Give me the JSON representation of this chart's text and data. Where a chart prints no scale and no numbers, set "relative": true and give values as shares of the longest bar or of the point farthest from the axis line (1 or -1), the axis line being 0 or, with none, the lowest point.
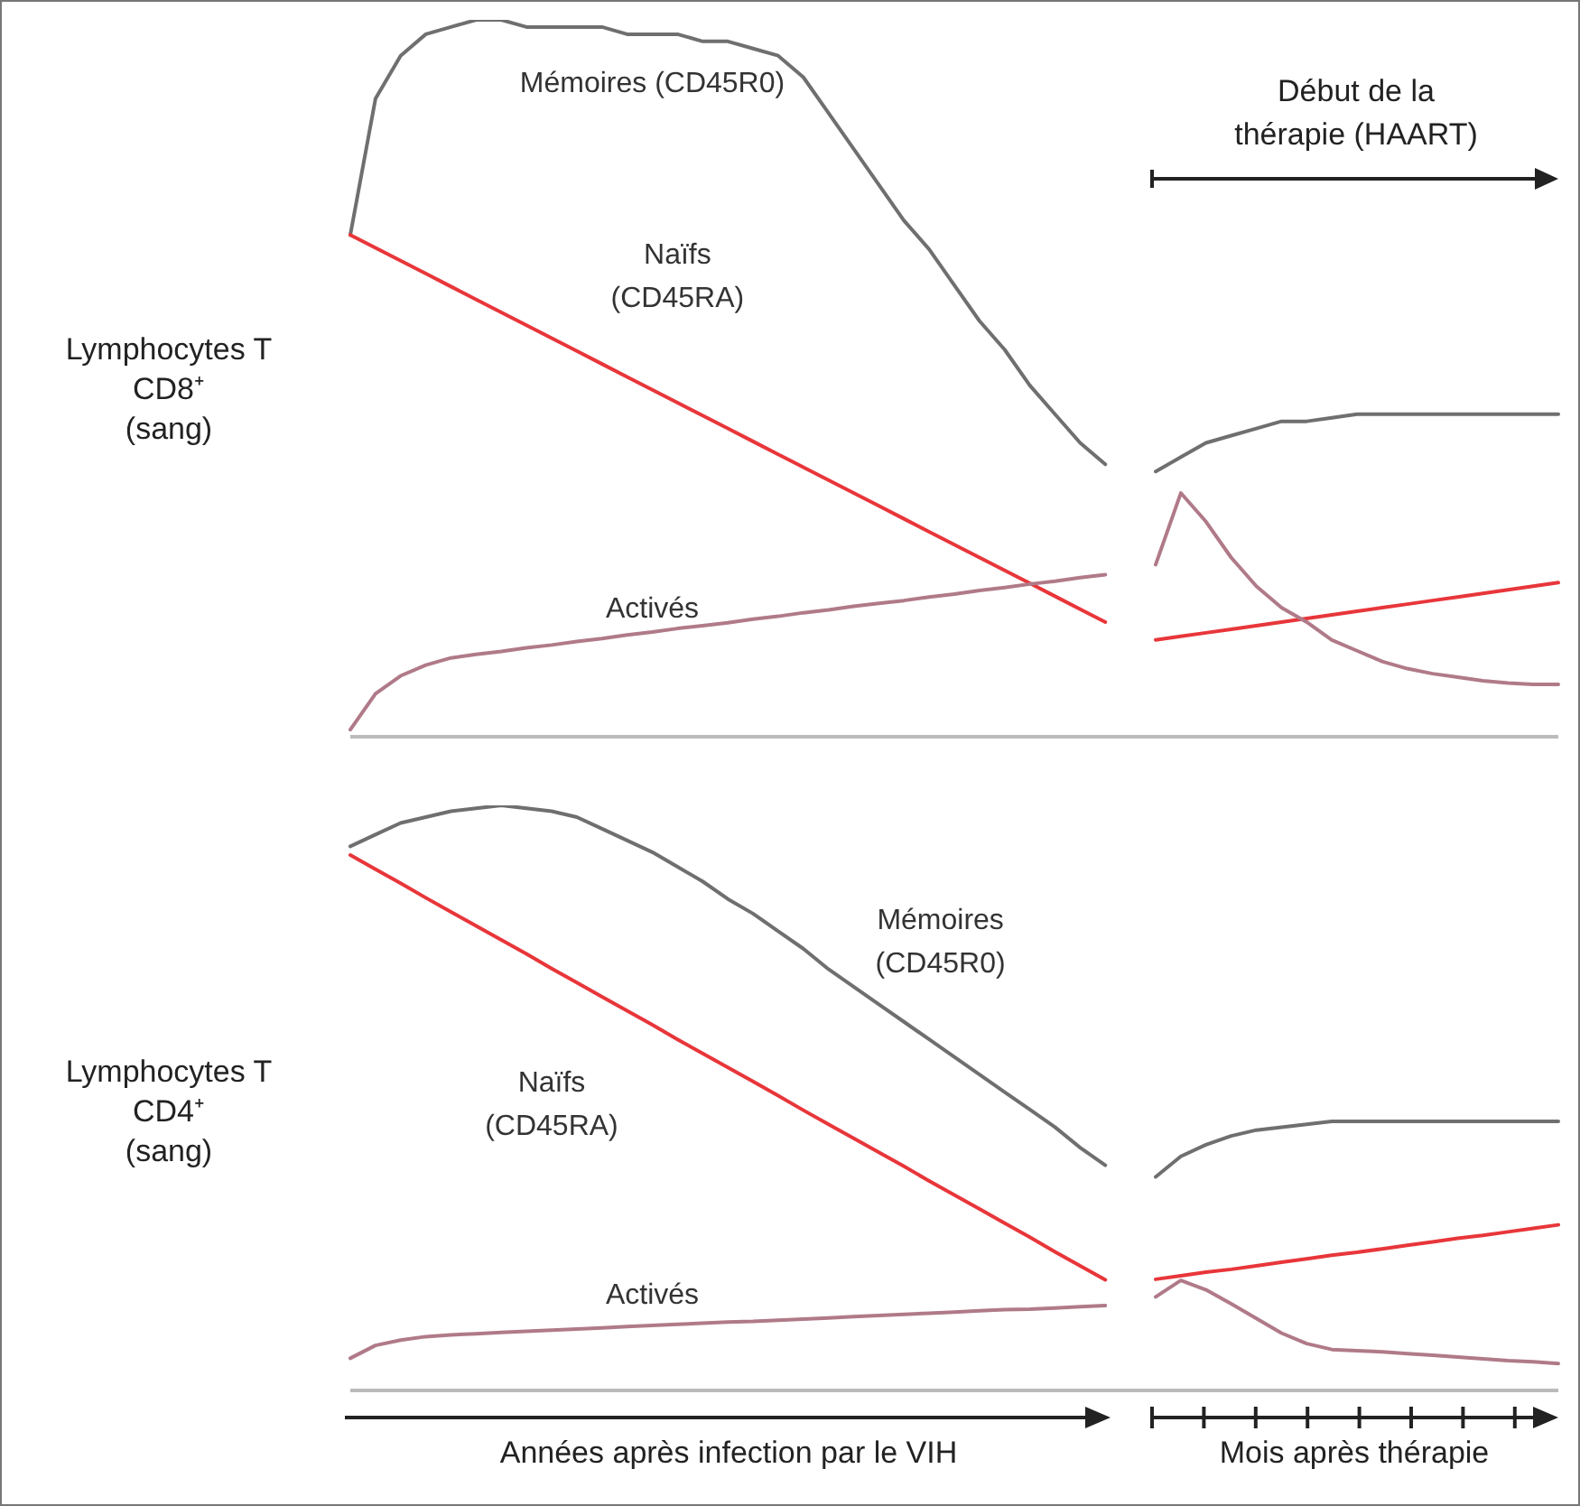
{
  "chart_data": [
    {
      "type": "line",
      "relative": true,
      "tick_labels": false,
      "ylabel": "Lymphocytes T CD8⁺ (sang)",
      "annotations": [
        "Début de la thérapie (HAART)"
      ],
      "categories": [
        null,
        null,
        null,
        null,
        null,
        null,
        null,
        null,
        null,
        null,
        null,
        null,
        null,
        null,
        null,
        null,
        null,
        null,
        null,
        null,
        null,
        null,
        null,
        null,
        null,
        null,
        null,
        null,
        null,
        null,
        null,
        null,
        null,
        null,
        null,
        null,
        null,
        null,
        null,
        null,
        null,
        null,
        null,
        null,
        null,
        null,
        null,
        null,
        null
      ],
      "series": [
        {
          "name": "Mémoires (CD45R0)",
          "color": "#6f6f6f",
          "values": [
            0.7,
            0.89,
            0.95,
            0.98,
            0.99,
            1.0,
            1.0,
            0.99,
            0.99,
            0.99,
            0.99,
            0.98,
            0.98,
            0.98,
            0.97,
            0.97,
            0.96,
            0.95,
            0.92,
            0.87,
            0.82,
            0.77,
            0.72,
            0.68,
            0.63,
            0.58,
            0.54,
            0.49,
            0.45,
            0.41,
            0.38,
            null,
            null,
            null,
            null,
            null,
            null,
            null,
            null,
            null,
            null,
            null,
            null,
            null,
            null,
            null,
            null,
            null,
            null
          ]
        },
        {
          "name": "Naïfs (CD45RA)",
          "color": "#e8363a",
          "values": [
            0.7,
            0.682,
            0.664,
            0.646,
            0.628,
            0.61,
            0.592,
            0.574,
            0.556,
            0.538,
            0.52,
            0.502,
            0.484,
            0.466,
            0.448,
            0.43,
            0.412,
            0.394,
            0.376,
            0.358,
            0.34,
            0.322,
            0.304,
            0.286,
            0.268,
            0.25,
            0.232,
            0.214,
            0.196,
            0.178,
            0.16,
            null,
            null,
            null,
            null,
            null,
            null,
            null,
            null,
            null,
            null,
            null,
            null,
            null,
            null,
            null,
            null,
            null,
            null
          ]
        },
        {
          "name": "Activés",
          "color": "#b07a88",
          "values": [
            0.01,
            0.06,
            0.085,
            0.1,
            0.11,
            0.115,
            0.119,
            0.124,
            0.128,
            0.133,
            0.137,
            0.142,
            0.146,
            0.151,
            0.155,
            0.159,
            0.164,
            0.168,
            0.173,
            0.177,
            0.182,
            0.186,
            0.19,
            0.195,
            0.199,
            0.204,
            0.208,
            0.213,
            0.217,
            0.222,
            0.226,
            null,
            null,
            null,
            null,
            null,
            null,
            null,
            null,
            null,
            null,
            null,
            null,
            null,
            null,
            null,
            null,
            null,
            null
          ]
        },
        {
          "color": "#6f6f6f",
          "values": [
            null,
            null,
            null,
            null,
            null,
            null,
            null,
            null,
            null,
            null,
            null,
            null,
            null,
            null,
            null,
            null,
            null,
            null,
            null,
            null,
            null,
            null,
            null,
            null,
            null,
            null,
            null,
            null,
            null,
            null,
            null,
            null,
            0.37,
            0.39,
            0.41,
            0.42,
            0.43,
            0.44,
            0.44,
            0.445,
            0.45,
            0.45,
            0.45,
            0.45,
            0.45,
            0.45,
            0.45,
            0.45,
            0.45
          ]
        },
        {
          "color": "#e8363a",
          "values": [
            null,
            null,
            null,
            null,
            null,
            null,
            null,
            null,
            null,
            null,
            null,
            null,
            null,
            null,
            null,
            null,
            null,
            null,
            null,
            null,
            null,
            null,
            null,
            null,
            null,
            null,
            null,
            null,
            null,
            null,
            null,
            null,
            0.135,
            0.14,
            0.145,
            0.15,
            0.155,
            0.16,
            0.165,
            0.17,
            0.175,
            0.18,
            0.185,
            0.19,
            0.195,
            0.2,
            0.205,
            0.21,
            0.215
          ]
        },
        {
          "color": "#b07a88",
          "values": [
            null,
            null,
            null,
            null,
            null,
            null,
            null,
            null,
            null,
            null,
            null,
            null,
            null,
            null,
            null,
            null,
            null,
            null,
            null,
            null,
            null,
            null,
            null,
            null,
            null,
            null,
            null,
            null,
            null,
            null,
            null,
            null,
            0.24,
            0.34,
            0.3,
            0.25,
            0.21,
            0.18,
            0.16,
            0.135,
            0.12,
            0.105,
            0.095,
            0.088,
            0.083,
            0.078,
            0.075,
            0.073,
            0.073
          ]
        }
      ]
    },
    {
      "type": "line",
      "relative": true,
      "tick_labels": false,
      "ylabel": "Lymphocytes T CD4⁺ (sang)",
      "xlabel": "Années après infection par le VIH",
      "annotations": [
        "Mois après thérapie"
      ],
      "categories": [
        null,
        null,
        null,
        null,
        null,
        null,
        null,
        null,
        null,
        null,
        null,
        null,
        null,
        null,
        null,
        null,
        null,
        null,
        null,
        null,
        null,
        null,
        null,
        null,
        null,
        null,
        null,
        null,
        null,
        null,
        null,
        null,
        null,
        null,
        null,
        null,
        null,
        null,
        null,
        null,
        null,
        null,
        null,
        null,
        null,
        null,
        null,
        null,
        null
      ],
      "series": [
        {
          "name": "Mémoires (CD45R0)",
          "color": "#6f6f6f",
          "values": [
            0.93,
            0.95,
            0.97,
            0.98,
            0.99,
            0.995,
            1.0,
            0.995,
            0.99,
            0.98,
            0.96,
            0.94,
            0.92,
            0.895,
            0.87,
            0.84,
            0.815,
            0.785,
            0.755,
            0.72,
            0.69,
            0.66,
            0.63,
            0.6,
            0.57,
            0.54,
            0.51,
            0.48,
            0.45,
            0.415,
            0.385,
            null,
            null,
            null,
            null,
            null,
            null,
            null,
            null,
            null,
            null,
            null,
            null,
            null,
            null,
            null,
            null,
            null,
            null
          ]
        },
        {
          "name": "Naïfs (CD45RA)",
          "color": "#e8363a",
          "values": [
            0.915,
            0.891,
            0.867,
            0.842,
            0.818,
            0.794,
            0.77,
            0.746,
            0.721,
            0.697,
            0.673,
            0.649,
            0.625,
            0.6,
            0.576,
            0.552,
            0.528,
            0.504,
            0.479,
            0.455,
            0.431,
            0.407,
            0.383,
            0.358,
            0.334,
            0.31,
            0.286,
            0.262,
            0.237,
            0.213,
            0.189,
            null,
            null,
            null,
            null,
            null,
            null,
            null,
            null,
            null,
            null,
            null,
            null,
            null,
            null,
            null,
            null,
            null,
            null
          ]
        },
        {
          "name": "Activés",
          "color": "#b07a88",
          "values": [
            0.055,
            0.077,
            0.086,
            0.092,
            0.095,
            0.097,
            0.099,
            0.101,
            0.103,
            0.105,
            0.107,
            0.109,
            0.111,
            0.113,
            0.115,
            0.117,
            0.118,
            0.12,
            0.122,
            0.124,
            0.126,
            0.128,
            0.13,
            0.132,
            0.134,
            0.136,
            0.138,
            0.139,
            0.141,
            0.143,
            0.145,
            null,
            null,
            null,
            null,
            null,
            null,
            null,
            null,
            null,
            null,
            null,
            null,
            null,
            null,
            null,
            null,
            null,
            null
          ]
        },
        {
          "color": "#6f6f6f",
          "values": [
            null,
            null,
            null,
            null,
            null,
            null,
            null,
            null,
            null,
            null,
            null,
            null,
            null,
            null,
            null,
            null,
            null,
            null,
            null,
            null,
            null,
            null,
            null,
            null,
            null,
            null,
            null,
            null,
            null,
            null,
            null,
            null,
            0.365,
            0.4,
            0.42,
            0.435,
            0.445,
            0.45,
            0.455,
            0.46,
            0.46,
            0.46,
            0.46,
            0.46,
            0.46,
            0.46,
            0.46,
            0.46,
            0.46
          ]
        },
        {
          "color": "#e8363a",
          "values": [
            null,
            null,
            null,
            null,
            null,
            null,
            null,
            null,
            null,
            null,
            null,
            null,
            null,
            null,
            null,
            null,
            null,
            null,
            null,
            null,
            null,
            null,
            null,
            null,
            null,
            null,
            null,
            null,
            null,
            null,
            null,
            null,
            0.19,
            0.196,
            0.202,
            0.207,
            0.213,
            0.219,
            0.225,
            0.231,
            0.236,
            0.242,
            0.248,
            0.254,
            0.26,
            0.265,
            0.271,
            0.277,
            0.283
          ]
        },
        {
          "color": "#b07a88",
          "values": [
            null,
            null,
            null,
            null,
            null,
            null,
            null,
            null,
            null,
            null,
            null,
            null,
            null,
            null,
            null,
            null,
            null,
            null,
            null,
            null,
            null,
            null,
            null,
            null,
            null,
            null,
            null,
            null,
            null,
            null,
            null,
            null,
            0.16,
            0.188,
            0.172,
            0.148,
            0.123,
            0.098,
            0.08,
            0.07,
            0.068,
            0.066,
            0.063,
            0.06,
            0.057,
            0.054,
            0.051,
            0.049,
            0.046
          ]
        }
      ]
    }
  ]
}
